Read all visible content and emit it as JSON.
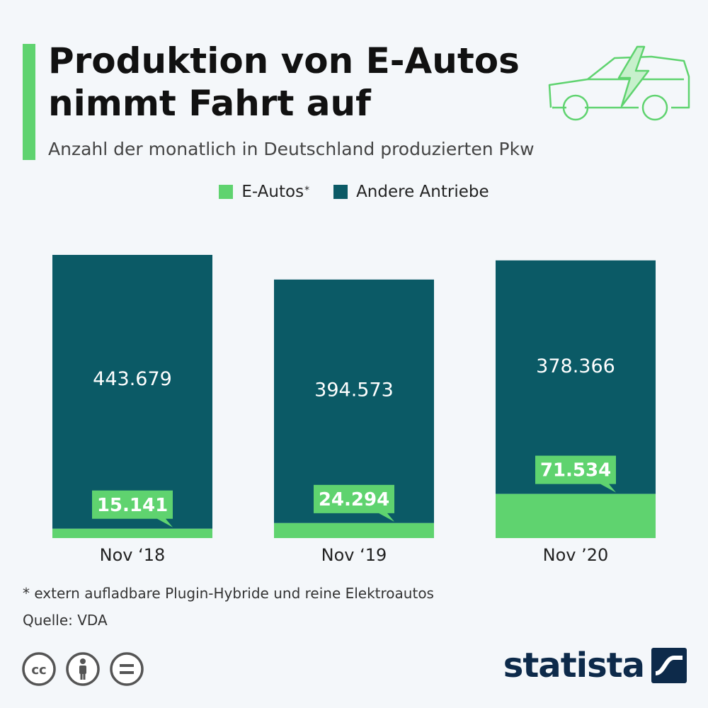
{
  "header": {
    "title": "Produktion von E-Autos nimmt Fahrt auf",
    "subtitle": "Anzahl der monatlich in Deutschland produzierten Pkw"
  },
  "legend": {
    "e_autos": "E-Autos",
    "e_autos_marker": "*",
    "andere": "Andere Antriebe"
  },
  "colors": {
    "e_autos": "#5fd36f",
    "andere": "#0b5a66",
    "label_text_on_green": "#ffffff",
    "background": "#f4f7fa"
  },
  "chart_data": {
    "type": "bar",
    "stacked": true,
    "categories": [
      "Nov ‘18",
      "Nov ‘19",
      "Nov ’20"
    ],
    "series": [
      {
        "name": "E-Autos",
        "values": [
          15141,
          24294,
          71534
        ],
        "labels": [
          "15.141",
          "24.294",
          "71.534"
        ]
      },
      {
        "name": "Andere Antriebe",
        "values": [
          443679,
          394573,
          378366
        ],
        "labels": [
          "443.679",
          "394.573",
          "378.366"
        ]
      }
    ],
    "title": "Produktion von E-Autos nimmt Fahrt auf",
    "xlabel": "",
    "ylabel": "",
    "ylim": [
      0,
      458820
    ],
    "grid": false,
    "legend_position": "top"
  },
  "footer": {
    "footnote": "* extern aufladbare Plugin-Hybride und reine Elektroautos",
    "source": "Quelle: VDA",
    "brand": "statista",
    "license_icons": [
      "cc-icon",
      "by-person-icon",
      "nd-equals-icon"
    ]
  }
}
